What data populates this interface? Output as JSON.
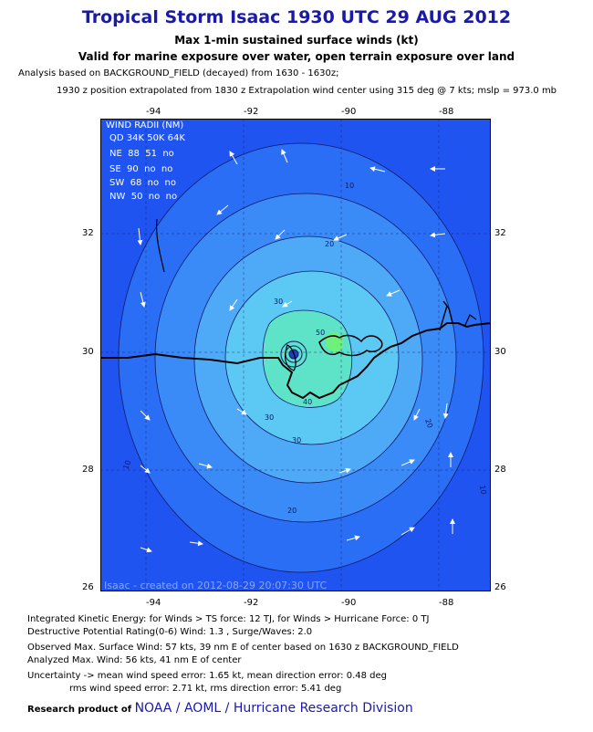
{
  "header": {
    "title": "Tropical Storm Isaac 1930 UTC 29 AUG 2012",
    "subtitle1": "Max 1-min sustained surface winds (kt)",
    "subtitle2": "Valid for marine exposure over water, open terrain exposure over land",
    "analysis_line": "Analysis based on BACKGROUND_FIELD (decayed) from 1630 - 1630z;",
    "position_line": "1930 z position extrapolated from 1830 z Extrapolation wind center using 315 deg @ 7 kts; mslp = 973.0 mb"
  },
  "axes": {
    "lon_ticks": [
      "-94",
      "-92",
      "-90",
      "-88"
    ],
    "lat_ticks": [
      "32",
      "30",
      "28",
      "26"
    ]
  },
  "wind_radii": {
    "title": "WIND RADII (NM)",
    "header": "QD 34K 50K 64K",
    "rows": [
      "NE  88  51  no",
      "SE  90  no  no",
      "SW  68  no  no",
      "NW  50  no  no"
    ]
  },
  "contour_labels": [
    "10",
    "20",
    "30",
    "40",
    "50",
    "30",
    "20",
    "10",
    "30",
    "20",
    "10"
  ],
  "credit": "Isaac - created on 2012-08-29 20:07:30 UTC",
  "footer": {
    "ike1": "Integrated Kinetic Energy: for Winds > TS force: 12 TJ, for Winds > Hurricane Force: 0 TJ",
    "ike2": "Destructive Potential Rating(0-6)  Wind: 1.3 , Surge/Waves: 2.0",
    "obs1": "Observed Max. Surface Wind: 57 kts, 39 nm E of center based on 1630 z BACKGROUND_FIELD",
    "obs2": "Analyzed Max. Wind: 56 kts, 41 nm  E of center",
    "unc1": "Uncertainty -> mean wind speed error: 1.65 kt, mean direction error: 0.48 deg",
    "unc2": "rms wind speed error: 2.71 kt, rms direction error: 5.41 deg",
    "research_prefix": "Research product of",
    "research_org": "NOAA / AOML / Hurricane Research Division"
  },
  "colors": {
    "background": "#1f54f0",
    "band10": "#2a6ef5",
    "band20": "#3a8af7",
    "band30": "#4ea9f7",
    "band40": "#5cc9f4",
    "band50": "#5ee2c8",
    "peak": "#6ef07a",
    "accent": "#1a1aa6"
  }
}
